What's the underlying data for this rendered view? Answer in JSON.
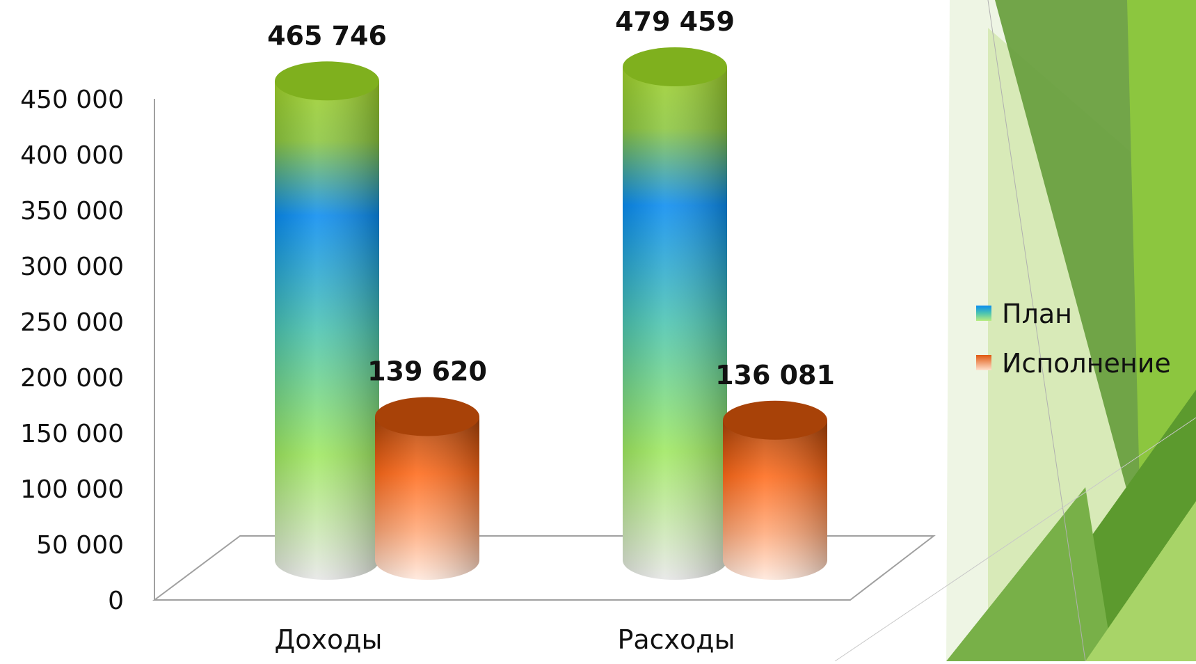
{
  "chart_data": {
    "type": "bar",
    "style": "3d-cylinder",
    "categories": [
      "Доходы",
      "Расходы"
    ],
    "series": [
      {
        "name": "План",
        "values": [
          465746,
          479459
        ],
        "value_labels": [
          "465 746",
          "479 459"
        ],
        "colors": [
          "#9fe060",
          "#0a8cf0",
          "#e6e6e6"
        ]
      },
      {
        "name": "Исполнение",
        "values": [
          139620,
          136081
        ],
        "value_labels": [
          "139 620",
          "136 081"
        ],
        "colors": [
          "#ff6a1a",
          "#ffe4d6"
        ]
      }
    ],
    "title": "",
    "xlabel": "",
    "ylabel": "",
    "ylim": [
      0,
      450000
    ],
    "yticks": [
      0,
      50000,
      100000,
      150000,
      200000,
      250000,
      300000,
      350000,
      400000,
      450000
    ],
    "ytick_labels": [
      "0",
      "50 000",
      "100 000",
      "150 000",
      "200 000",
      "250 000",
      "300 000",
      "350 000",
      "400 000",
      "450 000"
    ],
    "grid": false,
    "legend_position": "right"
  },
  "background": {
    "accent_dark": "#5c9a2e",
    "accent_light": "#c8e0a0",
    "accent_bright": "#8cc63f"
  }
}
